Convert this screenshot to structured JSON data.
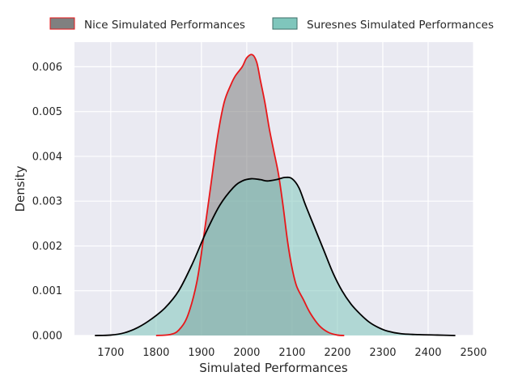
{
  "chart_data": {
    "type": "area",
    "xlabel": "Simulated Performances",
    "ylabel": "Density",
    "xlim": [
      1620,
      2500
    ],
    "ylim": [
      0,
      0.00655
    ],
    "xticks": [
      1700,
      1800,
      1900,
      2000,
      2100,
      2200,
      2300,
      2400,
      2500
    ],
    "yticks": [
      0.0,
      0.001,
      0.002,
      0.003,
      0.004,
      0.005,
      0.006
    ],
    "ytick_labels": [
      "0.000",
      "0.001",
      "0.002",
      "0.003",
      "0.004",
      "0.005",
      "0.006"
    ],
    "grid": true,
    "legend_position": "top",
    "series": [
      {
        "name": "Nice Simulated Performances",
        "fill": "#808080",
        "edge": "#e8171a",
        "points": [
          [
            1800,
            0.0
          ],
          [
            1830,
            2e-05
          ],
          [
            1850,
            0.00012
          ],
          [
            1870,
            0.00045
          ],
          [
            1890,
            0.0012
          ],
          [
            1905,
            0.0022
          ],
          [
            1920,
            0.0033
          ],
          [
            1935,
            0.0044
          ],
          [
            1950,
            0.0052
          ],
          [
            1965,
            0.0056
          ],
          [
            1975,
            0.0058
          ],
          [
            1990,
            0.006
          ],
          [
            2000,
            0.0062
          ],
          [
            2012,
            0.00627
          ],
          [
            2022,
            0.0061
          ],
          [
            2030,
            0.0057
          ],
          [
            2040,
            0.0052
          ],
          [
            2050,
            0.0046
          ],
          [
            2060,
            0.0041
          ],
          [
            2070,
            0.0036
          ],
          [
            2080,
            0.0029
          ],
          [
            2090,
            0.0021
          ],
          [
            2100,
            0.0015
          ],
          [
            2110,
            0.0011
          ],
          [
            2125,
            0.0008
          ],
          [
            2140,
            0.0005
          ],
          [
            2160,
            0.00022
          ],
          [
            2180,
            7e-05
          ],
          [
            2200,
            1e-05
          ],
          [
            2215,
            0.0
          ]
        ]
      },
      {
        "name": "Suresnes Simulated Performances",
        "fill": "#7fc6bc",
        "edge": "#000000",
        "points": [
          [
            1665,
            0.0
          ],
          [
            1700,
            1e-05
          ],
          [
            1730,
            6e-05
          ],
          [
            1760,
            0.00018
          ],
          [
            1790,
            0.00037
          ],
          [
            1820,
            0.00062
          ],
          [
            1850,
            0.001
          ],
          [
            1880,
            0.0016
          ],
          [
            1910,
            0.0023
          ],
          [
            1940,
            0.0029
          ],
          [
            1970,
            0.0033
          ],
          [
            1990,
            0.00345
          ],
          [
            2010,
            0.0035
          ],
          [
            2030,
            0.00348
          ],
          [
            2045,
            0.00345
          ],
          [
            2065,
            0.00348
          ],
          [
            2085,
            0.00353
          ],
          [
            2100,
            0.0035
          ],
          [
            2115,
            0.0033
          ],
          [
            2130,
            0.0029
          ],
          [
            2150,
            0.0024
          ],
          [
            2170,
            0.0019
          ],
          [
            2190,
            0.0014
          ],
          [
            2210,
            0.001
          ],
          [
            2230,
            0.0007
          ],
          [
            2250,
            0.00048
          ],
          [
            2270,
            0.0003
          ],
          [
            2290,
            0.00018
          ],
          [
            2310,
            0.0001
          ],
          [
            2340,
            4e-05
          ],
          [
            2380,
            2e-05
          ],
          [
            2420,
            1e-05
          ],
          [
            2460,
            0.0
          ]
        ]
      }
    ]
  }
}
